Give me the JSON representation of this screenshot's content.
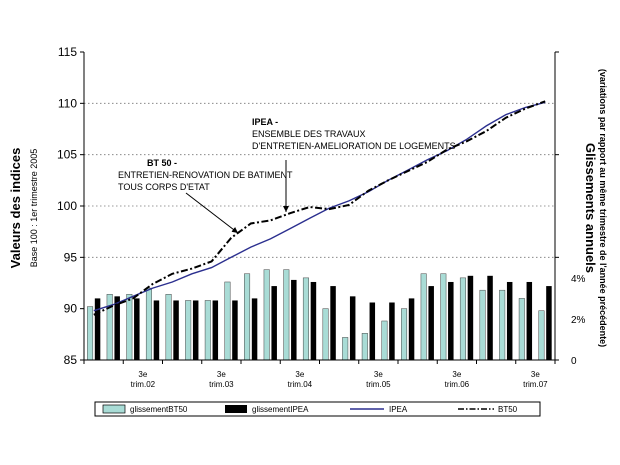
{
  "chart_data": {
    "type": "bar",
    "title": "",
    "ylabel_left": "Valeurs des indices",
    "ylabel_left_sub": "Base 100 : 1er trimestre 2005",
    "ylabel_right": "Glissements annuels",
    "ylabel_right_sub": "(variations par rapport au même trimestre de l'année précédente)",
    "y_left_ticks": [
      "85",
      "90",
      "95",
      "100",
      "105",
      "110",
      "115"
    ],
    "y_left_range": [
      85,
      115
    ],
    "y_right_ticks": [
      "0",
      "2%",
      "4%"
    ],
    "y_right_range": [
      0,
      15
    ],
    "grid_values": [
      95,
      100,
      105,
      110
    ],
    "periods": 24,
    "x_labels": [
      {
        "index": 2,
        "line1": "3e",
        "line2": "trim.02"
      },
      {
        "index": 6,
        "line1": "3e",
        "line2": "trim.03"
      },
      {
        "index": 10,
        "line1": "3e",
        "line2": "trim.04"
      },
      {
        "index": 14,
        "line1": "3e",
        "line2": "trim.05"
      },
      {
        "index": 18,
        "line1": "3e",
        "line2": "trim.06"
      },
      {
        "index": 22,
        "line1": "3e",
        "line2": "trim.07"
      }
    ],
    "series": [
      {
        "name": "glissementBT50",
        "type": "bar",
        "axis": "right",
        "color": "#a9dcd6",
        "values": [
          2.6,
          3.2,
          3.2,
          3.5,
          3.2,
          2.9,
          2.9,
          3.8,
          4.2,
          4.4,
          4.4,
          4.0,
          2.5,
          1.1,
          1.3,
          1.9,
          2.5,
          4.2,
          4.2,
          4.0,
          3.4,
          3.4,
          3.0,
          2.4
        ]
      },
      {
        "name": "glissementIPEA",
        "type": "bar",
        "axis": "right",
        "color": "#000000",
        "values": [
          3.0,
          3.1,
          3.0,
          2.9,
          2.9,
          2.9,
          2.9,
          2.9,
          3.0,
          3.6,
          3.9,
          3.8,
          3.6,
          3.1,
          2.8,
          2.8,
          3.0,
          3.6,
          3.8,
          4.1,
          4.1,
          3.8,
          3.8,
          3.6
        ]
      },
      {
        "name": "IPEA",
        "type": "line",
        "axis": "left",
        "color": "#2b2f8f",
        "values": [
          89.8,
          90.4,
          91.2,
          92.0,
          92.6,
          93.4,
          94.0,
          95.0,
          96.0,
          96.8,
          97.8,
          98.8,
          99.8,
          100.5,
          101.4,
          102.5,
          103.5,
          104.5,
          105.4,
          106.5,
          107.8,
          108.9,
          109.6,
          110.1
        ]
      },
      {
        "name": "BT50",
        "type": "line",
        "axis": "left",
        "color": "#000000",
        "values": [
          89.4,
          90.3,
          91.0,
          92.4,
          93.4,
          93.9,
          94.6,
          96.9,
          98.3,
          98.6,
          99.3,
          99.9,
          99.7,
          100.1,
          101.5,
          102.5,
          103.4,
          104.3,
          105.5,
          106.3,
          107.3,
          108.6,
          109.5,
          110.2
        ]
      }
    ],
    "annotations": [
      {
        "key": "ipea",
        "bold": "IPEA -",
        "lines": [
          "ENSEMBLE DES TRAVAUX",
          "D'ENTRETIEN-AMELIORATION DE LOGEMENTS"
        ]
      },
      {
        "key": "bt50",
        "bold": "BT 50 -",
        "lines": [
          "ENTRETIEN-RENOVATION DE BATIMENT",
          "TOUS CORPS D'ETAT"
        ]
      }
    ],
    "legend": {
      "placement": "bottom",
      "entries": [
        "glissementBT50",
        "glissementIPEA",
        "IPEA",
        "BT50"
      ]
    }
  }
}
